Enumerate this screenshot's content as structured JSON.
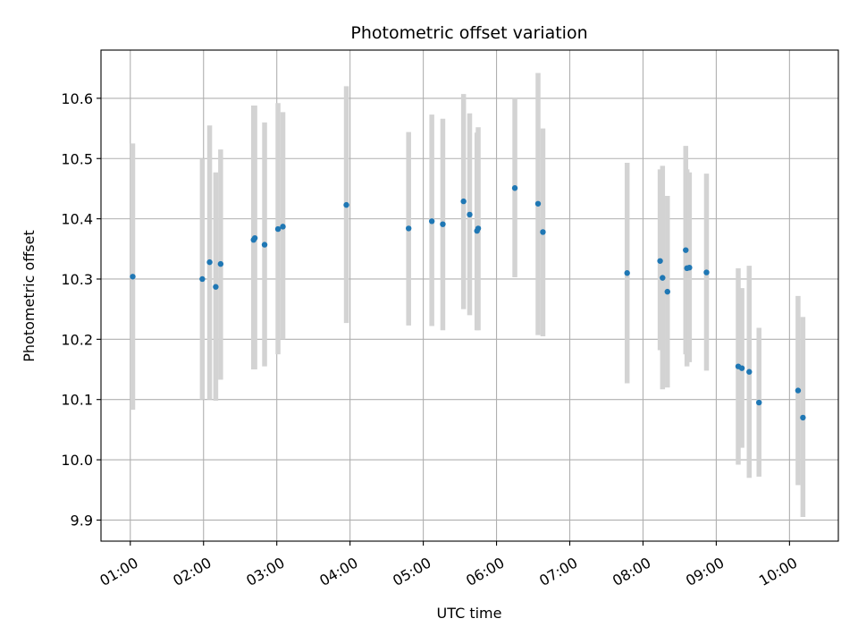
{
  "chart_data": {
    "type": "scatter",
    "title": "Photometric offset variation",
    "xlabel": "UTC time",
    "ylabel": "Photometric offset",
    "xlim": [
      "00:36",
      "10:40"
    ],
    "ylim": [
      9.865,
      10.68
    ],
    "x_ticks": [
      "01:00",
      "02:00",
      "03:00",
      "04:00",
      "05:00",
      "06:00",
      "07:00",
      "08:00",
      "09:00",
      "10:00"
    ],
    "y_ticks": [
      9.9,
      10.0,
      10.1,
      10.2,
      10.3,
      10.4,
      10.5,
      10.6
    ],
    "y_tick_labels": [
      "9.9",
      "10.0",
      "10.1",
      "10.2",
      "10.3",
      "10.4",
      "10.5",
      "10.6"
    ],
    "grid": true,
    "colors": {
      "point": "#1f77b4",
      "errorbar": "#d3d3d3",
      "grid": "#b0b0b0"
    },
    "series": [
      {
        "points": [
          {
            "x": "01:02",
            "y": 10.304,
            "low": 10.083,
            "high": 10.525
          },
          {
            "x": "01:59",
            "y": 10.3,
            "low": 10.1,
            "high": 10.5
          },
          {
            "x": "02:05",
            "y": 10.328,
            "low": 10.1,
            "high": 10.555
          },
          {
            "x": "02:10",
            "y": 10.287,
            "low": 10.098,
            "high": 10.477
          },
          {
            "x": "02:14",
            "y": 10.325,
            "low": 10.133,
            "high": 10.515
          },
          {
            "x": "02:41",
            "y": 10.365,
            "low": 10.15,
            "high": 10.588
          },
          {
            "x": "02:42",
            "y": 10.368,
            "low": 10.15,
            "high": 10.588
          },
          {
            "x": "02:50",
            "y": 10.357,
            "low": 10.155,
            "high": 10.56
          },
          {
            "x": "03:01",
            "y": 10.383,
            "low": 10.175,
            "high": 10.592
          },
          {
            "x": "03:05",
            "y": 10.387,
            "low": 10.2,
            "high": 10.577
          },
          {
            "x": "03:57",
            "y": 10.423,
            "low": 10.227,
            "high": 10.62
          },
          {
            "x": "04:48",
            "y": 10.384,
            "low": 10.223,
            "high": 10.544
          },
          {
            "x": "05:07",
            "y": 10.396,
            "low": 10.222,
            "high": 10.573
          },
          {
            "x": "05:16",
            "y": 10.391,
            "low": 10.215,
            "high": 10.566
          },
          {
            "x": "05:33",
            "y": 10.429,
            "low": 10.25,
            "high": 10.607
          },
          {
            "x": "05:38",
            "y": 10.407,
            "low": 10.24,
            "high": 10.575
          },
          {
            "x": "05:44",
            "y": 10.38,
            "low": 10.215,
            "high": 10.543
          },
          {
            "x": "05:45",
            "y": 10.384,
            "low": 10.215,
            "high": 10.552
          },
          {
            "x": "06:15",
            "y": 10.451,
            "low": 10.303,
            "high": 10.6
          },
          {
            "x": "06:34",
            "y": 10.425,
            "low": 10.207,
            "high": 10.642
          },
          {
            "x": "06:38",
            "y": 10.378,
            "low": 10.205,
            "high": 10.55
          },
          {
            "x": "07:47",
            "y": 10.31,
            "low": 10.127,
            "high": 10.493
          },
          {
            "x": "08:14",
            "y": 10.33,
            "low": 10.182,
            "high": 10.482
          },
          {
            "x": "08:16",
            "y": 10.302,
            "low": 10.117,
            "high": 10.488
          },
          {
            "x": "08:20",
            "y": 10.279,
            "low": 10.12,
            "high": 10.438
          },
          {
            "x": "08:35",
            "y": 10.348,
            "low": 10.175,
            "high": 10.521
          },
          {
            "x": "08:36",
            "y": 10.318,
            "low": 10.155,
            "high": 10.482
          },
          {
            "x": "08:38",
            "y": 10.319,
            "low": 10.162,
            "high": 10.477
          },
          {
            "x": "08:52",
            "y": 10.311,
            "low": 10.148,
            "high": 10.475
          },
          {
            "x": "09:18",
            "y": 10.155,
            "low": 9.992,
            "high": 10.318
          },
          {
            "x": "09:21",
            "y": 10.152,
            "low": 10.02,
            "high": 10.285
          },
          {
            "x": "09:27",
            "y": 10.146,
            "low": 9.97,
            "high": 10.322
          },
          {
            "x": "09:35",
            "y": 10.095,
            "low": 9.972,
            "high": 10.219
          },
          {
            "x": "10:07",
            "y": 10.115,
            "low": 9.958,
            "high": 10.272
          },
          {
            "x": "10:11",
            "y": 10.07,
            "low": 9.905,
            "high": 10.237
          }
        ]
      }
    ]
  }
}
